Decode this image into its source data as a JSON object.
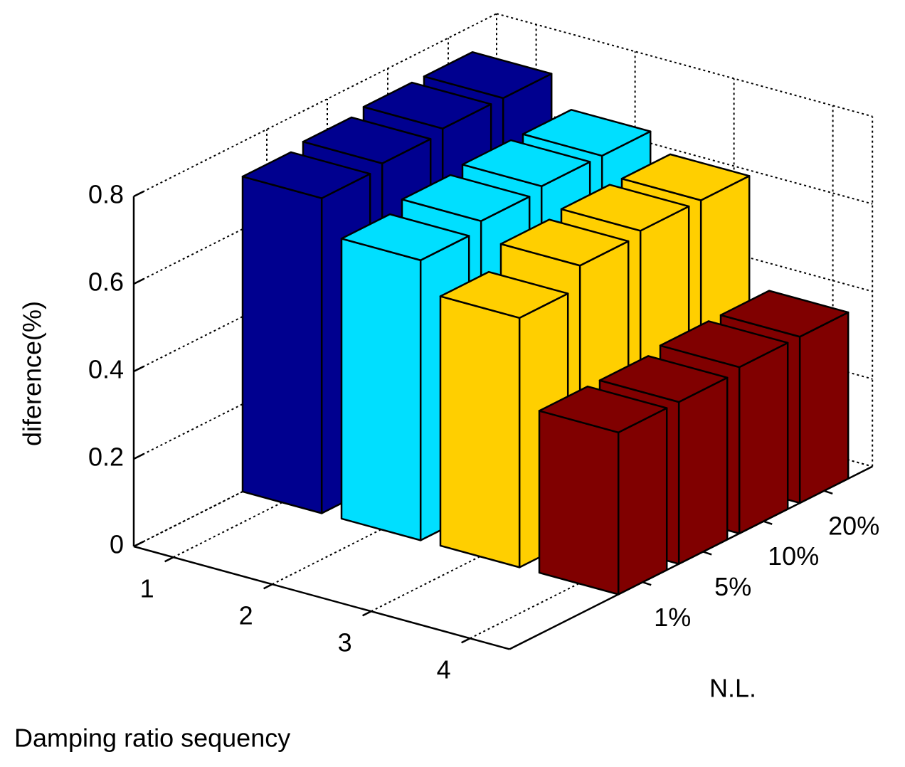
{
  "chart_data": {
    "type": "bar3d",
    "xlabel": "Damping ratio sequency",
    "ylabel": "N.L.",
    "zlabel": "diference(%)",
    "categories": [
      "1",
      "2",
      "3",
      "4"
    ],
    "y_categories": [
      "1%",
      "5%",
      "10%",
      "20%"
    ],
    "series": [
      {
        "color": "#00008f",
        "values": [
          0.72,
          0.73,
          0.74,
          0.74
        ]
      },
      {
        "color": "#00dfff",
        "values": [
          0.64,
          0.66,
          0.67,
          0.67
        ]
      },
      {
        "color": "#ffcf00",
        "values": [
          0.57,
          0.62,
          0.63,
          0.63
        ]
      },
      {
        "color": "#800000",
        "values": [
          0.37,
          0.37,
          0.38,
          0.38
        ]
      }
    ],
    "xlim": [
      0.6,
      4.4
    ],
    "ylim": [
      -1.2,
      4.8
    ],
    "zlim": [
      0,
      0.8
    ],
    "zticks": [
      0,
      0.2,
      0.4,
      0.6,
      0.8
    ],
    "grid": true
  }
}
